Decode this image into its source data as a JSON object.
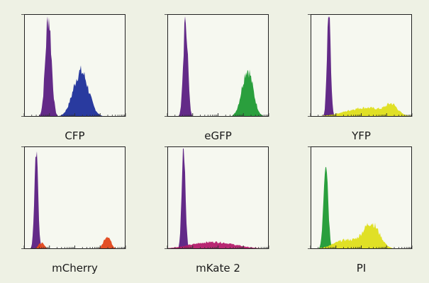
{
  "figure": {
    "background": "#eef1e4",
    "plot_background": "#f6f8f0"
  },
  "chart_data": [
    {
      "type": "area",
      "xlabel": "CFP",
      "series": [
        {
          "color": "#5b1f82",
          "peaks": [
            {
              "center": 0.24,
              "width": 0.03,
              "height": 1.0
            }
          ]
        },
        {
          "color": "#1e2f9a",
          "peaks": [
            {
              "center": 0.56,
              "width": 0.075,
              "height": 0.45
            }
          ]
        }
      ]
    },
    {
      "type": "area",
      "xlabel": "eGFP",
      "series": [
        {
          "color": "#5b1f82",
          "peaks": [
            {
              "center": 0.18,
              "width": 0.022,
              "height": 1.0
            }
          ]
        },
        {
          "color": "#1f9a33",
          "peaks": [
            {
              "center": 0.79,
              "width": 0.055,
              "height": 0.47
            }
          ]
        }
      ]
    },
    {
      "type": "area",
      "xlabel": "YFP",
      "series": [
        {
          "color": "#5b1f82",
          "peaks": [
            {
              "center": 0.18,
              "width": 0.018,
              "height": 1.0
            }
          ]
        },
        {
          "color": "#dede1a",
          "peaks": [
            {
              "center": 0.55,
              "width": 0.2,
              "height": 0.09
            },
            {
              "center": 0.8,
              "width": 0.055,
              "height": 0.09
            }
          ]
        }
      ]
    },
    {
      "type": "area",
      "xlabel": "mCherry",
      "series": [
        {
          "color": "#5b1f82",
          "peaks": [
            {
              "center": 0.12,
              "width": 0.018,
              "height": 1.0
            }
          ]
        },
        {
          "color": "#e2461a",
          "peaks": [
            {
              "center": 0.17,
              "width": 0.03,
              "height": 0.06
            },
            {
              "center": 0.82,
              "width": 0.035,
              "height": 0.13
            }
          ]
        }
      ]
    },
    {
      "type": "area",
      "xlabel": "mKate 2",
      "series": [
        {
          "color": "#5b1f82",
          "peaks": [
            {
              "center": 0.16,
              "width": 0.018,
              "height": 1.0
            }
          ]
        },
        {
          "color": "#b31c6a",
          "peaks": [
            {
              "center": 0.45,
              "width": 0.22,
              "height": 0.07
            }
          ]
        }
      ]
    },
    {
      "type": "area",
      "xlabel": "PI",
      "series": [
        {
          "color": "#1f9a33",
          "peaks": [
            {
              "center": 0.15,
              "width": 0.022,
              "height": 0.92
            }
          ]
        },
        {
          "color": "#dede1a",
          "peaks": [
            {
              "center": 0.6,
              "width": 0.08,
              "height": 0.25
            },
            {
              "center": 0.35,
              "width": 0.12,
              "height": 0.09
            }
          ]
        }
      ]
    }
  ]
}
